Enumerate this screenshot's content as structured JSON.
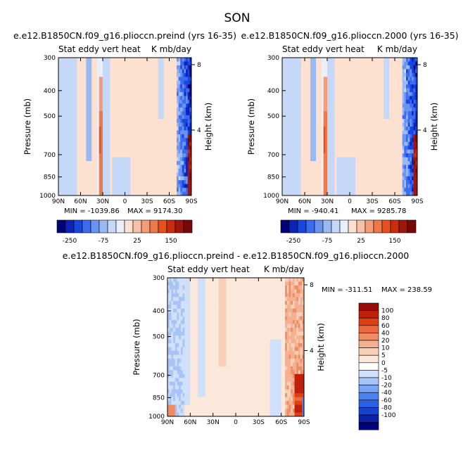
{
  "figure": {
    "main_title": "SON"
  },
  "palettes": {
    "main": [
      "#00007a",
      "#0a24b8",
      "#1846e0",
      "#3c6af0",
      "#6a94f0",
      "#9ab8f4",
      "#c6d8f8",
      "#eaf0fa",
      "#fce0d0",
      "#f8c0a4",
      "#f49c78",
      "#ef7848",
      "#e8501e",
      "#cc2c0c",
      "#a01608",
      "#780808"
    ],
    "main_background": "#d2e2f8",
    "diff": [
      "#00007e",
      "#0a22a6",
      "#1842cc",
      "#2a60e4",
      "#4a82ee",
      "#7aa4f2",
      "#a8c4f6",
      "#d0e0fa",
      "#ffffff",
      "#fce8da",
      "#f8d0b8",
      "#f4b090",
      "#f08c64",
      "#ea683c",
      "#de4014",
      "#c0200a",
      "#980a06"
    ],
    "diff_background": "#fbe5d5"
  },
  "chart_data": [
    {
      "type": "heatmap",
      "title": "e.e12.B1850CN.f09_g16.plioccn.preind (yrs 16-35)",
      "subtitle_left": "Stat eddy vert heat",
      "subtitle_right": "K mb/day",
      "xlabel": "",
      "ylabel": "Pressure (mb)",
      "y2label": "Height (km)",
      "x_ticks": [
        "90N",
        "60N",
        "30N",
        "0",
        "30S",
        "60S",
        "90S"
      ],
      "x_range": [
        90,
        -90
      ],
      "y_ticks": [
        300,
        400,
        500,
        700,
        850,
        1000
      ],
      "y_range": [
        300,
        1000
      ],
      "y2_ticks": [
        8,
        4
      ],
      "min_label": "MIN = -1039.86",
      "max_label": "MAX = 9174.30",
      "min": -1039.86,
      "max": 9174.3,
      "colorbar_labels": [
        "-250",
        "-75",
        "25",
        "150"
      ]
    },
    {
      "type": "heatmap",
      "title": "e.e12.B1850CN.f09_g16.plioccn.2000 (yrs 16-35)",
      "subtitle_left": "Stat eddy vert heat",
      "subtitle_right": "K mb/day",
      "xlabel": "",
      "ylabel": "Pressure (mb)",
      "y2label": "Height (km)",
      "x_ticks": [
        "90N",
        "60N",
        "30N",
        "0",
        "30S",
        "60S",
        "90S"
      ],
      "x_range": [
        90,
        -90
      ],
      "y_ticks": [
        300,
        400,
        500,
        700,
        850,
        1000
      ],
      "y_range": [
        300,
        1000
      ],
      "y2_ticks": [
        8,
        4
      ],
      "min_label": "MIN = -940.41",
      "max_label": "MAX = 9285.78",
      "min": -940.41,
      "max": 9285.78,
      "colorbar_labels": [
        "-250",
        "-75",
        "25",
        "150"
      ]
    },
    {
      "type": "heatmap",
      "title": "e.e12.B1850CN.f09_g16.plioccn.preind - e.e12.B1850CN.f09_g16.plioccn.2000",
      "subtitle_left": "Stat eddy vert heat",
      "subtitle_right": "K mb/day",
      "xlabel": "",
      "ylabel": "Pressure (mb)",
      "y2label": "Height (km)",
      "x_ticks": [
        "90N",
        "60N",
        "30N",
        "0",
        "30S",
        "60S",
        "90S"
      ],
      "x_range": [
        90,
        -90
      ],
      "y_ticks": [
        300,
        400,
        500,
        700,
        850,
        1000
      ],
      "y_range": [
        300,
        1000
      ],
      "y2_ticks": [
        8,
        4
      ],
      "min_label": "MIN = -311.51",
      "max_label": "MAX = 238.59",
      "min": -311.51,
      "max": 238.59,
      "colorbar_labels": [
        "100",
        "80",
        "60",
        "40",
        "20",
        "10",
        "5",
        "0",
        "-5",
        "-10",
        "-20",
        "-40",
        "-60",
        "-80",
        "-100"
      ]
    }
  ]
}
